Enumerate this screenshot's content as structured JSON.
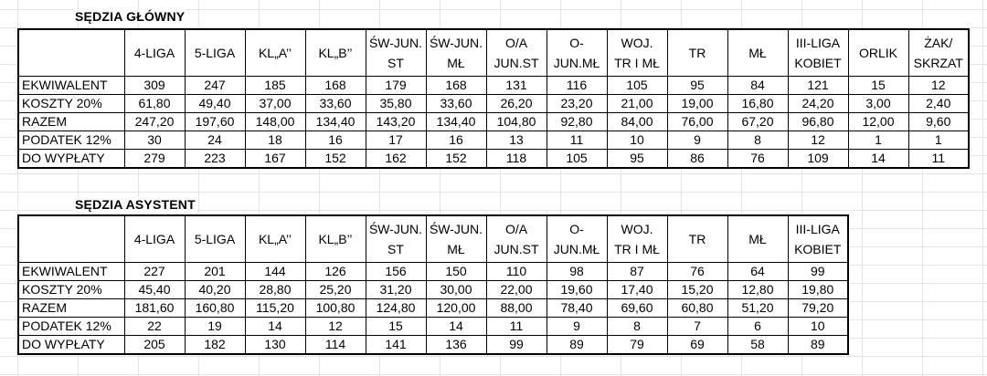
{
  "tables": [
    {
      "title": "SĘDZIA GŁÓWNY",
      "columns": [
        [
          "4-LIGA"
        ],
        [
          "5-LIGA"
        ],
        [
          "KL„A’’"
        ],
        [
          "KL„B’’"
        ],
        [
          "ŚW-JUN.",
          "ST"
        ],
        [
          "ŚW-JUN.",
          "MŁ"
        ],
        [
          "O/A",
          "JUN.ST"
        ],
        [
          "O-",
          "JUN.MŁ"
        ],
        [
          "WOJ.",
          "TR I MŁ"
        ],
        [
          "TR"
        ],
        [
          "MŁ"
        ],
        [
          "III-LIGA",
          "KOBIET"
        ],
        [
          "ORLIK"
        ],
        [
          "ŻAK/",
          "SKRZAT"
        ]
      ],
      "rows": [
        {
          "label": "EKWIWALENT",
          "values": [
            "309",
            "247",
            "185",
            "168",
            "179",
            "168",
            "131",
            "116",
            "105",
            "95",
            "84",
            "121",
            "15",
            "12"
          ]
        },
        {
          "label": "KOSZTY 20%",
          "values": [
            "61,80",
            "49,40",
            "37,00",
            "33,60",
            "35,80",
            "33,60",
            "26,20",
            "23,20",
            "21,00",
            "19,00",
            "16,80",
            "24,20",
            "3,00",
            "2,40"
          ]
        },
        {
          "label": "RAZEM",
          "values": [
            "247,20",
            "197,60",
            "148,00",
            "134,40",
            "143,20",
            "134,40",
            "104,80",
            "92,80",
            "84,00",
            "76,00",
            "67,20",
            "96,80",
            "12,00",
            "9,60"
          ]
        },
        {
          "label": "PODATEK 12%",
          "values": [
            "30",
            "24",
            "18",
            "16",
            "17",
            "16",
            "13",
            "11",
            "10",
            "9",
            "8",
            "12",
            "1",
            "1"
          ]
        },
        {
          "label": "DO WYPŁATY",
          "values": [
            "279",
            "223",
            "167",
            "152",
            "162",
            "152",
            "118",
            "105",
            "95",
            "86",
            "76",
            "109",
            "14",
            "11"
          ]
        }
      ]
    },
    {
      "title": "SĘDZIA ASYSTENT",
      "columns": [
        [
          "4-LIGA"
        ],
        [
          "5-LIGA"
        ],
        [
          "KL„A’’"
        ],
        [
          "KL„B’’"
        ],
        [
          "ŚW-JUN.",
          "ST"
        ],
        [
          "ŚW-JUN.",
          "MŁ"
        ],
        [
          "O/A",
          "JUN.ST"
        ],
        [
          "O-",
          "JUN.MŁ"
        ],
        [
          "WOJ.",
          "TR I MŁ"
        ],
        [
          "TR"
        ],
        [
          "MŁ"
        ],
        [
          "III-LIGA",
          "KOBIET"
        ]
      ],
      "rows": [
        {
          "label": "EKWIWALENT",
          "values": [
            "227",
            "201",
            "144",
            "126",
            "156",
            "150",
            "110",
            "98",
            "87",
            "76",
            "64",
            "99"
          ]
        },
        {
          "label": "KOSZTY 20%",
          "values": [
            "45,40",
            "40,20",
            "28,80",
            "25,20",
            "31,20",
            "30,00",
            "22,00",
            "19,60",
            "17,40",
            "15,20",
            "12,80",
            "19,80"
          ]
        },
        {
          "label": "RAZEM",
          "values": [
            "181,60",
            "160,80",
            "115,20",
            "100,80",
            "124,80",
            "120,00",
            "88,00",
            "78,40",
            "69,60",
            "60,80",
            "51,20",
            "79,20"
          ]
        },
        {
          "label": "PODATEK 12%",
          "values": [
            "22",
            "19",
            "14",
            "12",
            "15",
            "14",
            "11",
            "9",
            "8",
            "7",
            "6",
            "10"
          ]
        },
        {
          "label": "DO WYPŁATY",
          "values": [
            "205",
            "182",
            "130",
            "114",
            "141",
            "136",
            "99",
            "89",
            "79",
            "69",
            "58",
            "89"
          ]
        }
      ]
    }
  ]
}
